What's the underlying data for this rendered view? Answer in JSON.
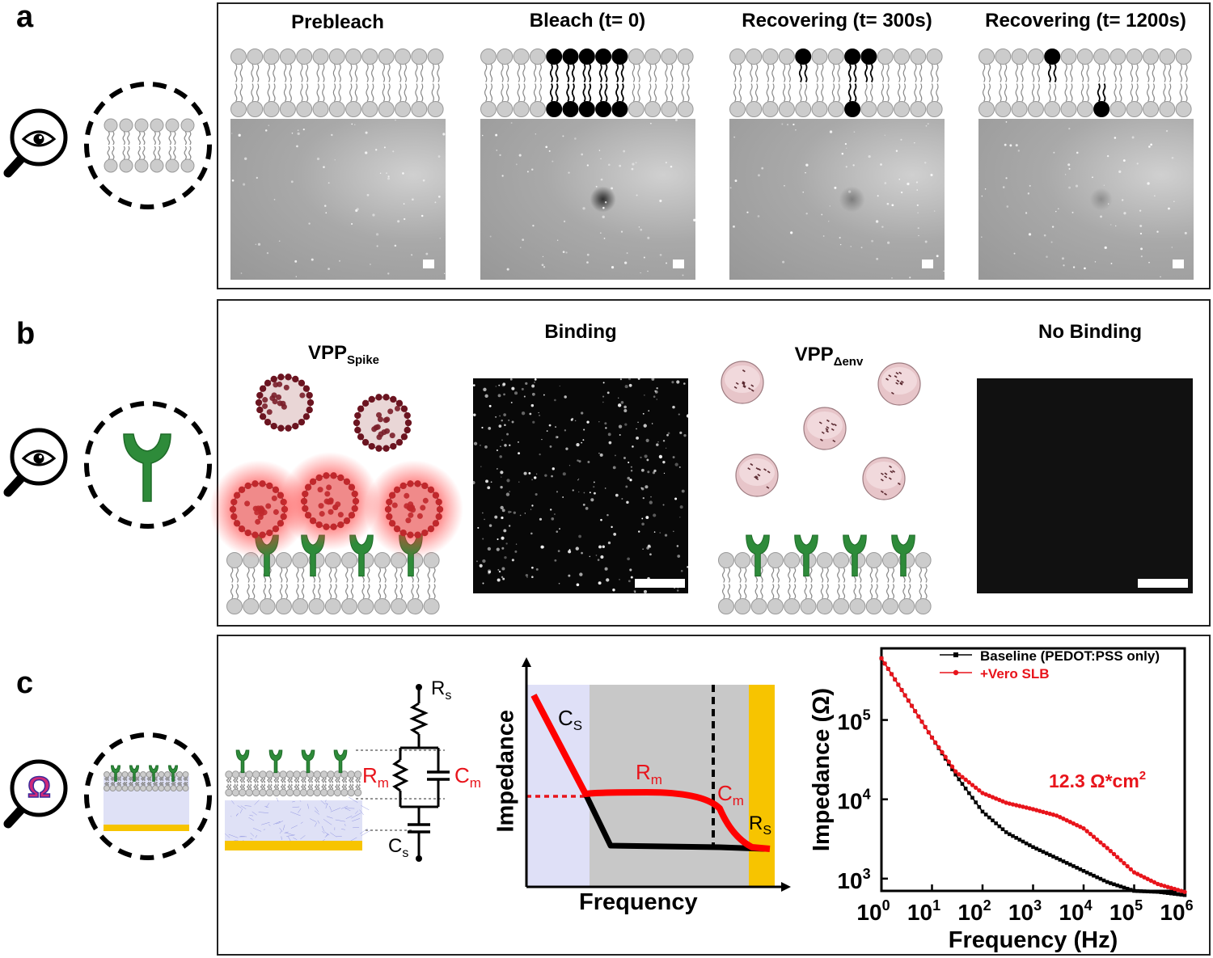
{
  "panels": {
    "a": {
      "letter": "a",
      "titles": [
        "Prebleach",
        "Bleach (t= 0)",
        "Recovering (t= 300s)",
        "Recovering (t= 1200s)"
      ]
    },
    "b": {
      "letter": "b",
      "spike_label": "VPP",
      "spike_sub": "Spike",
      "binding_title": "Binding",
      "env_label": "VPP",
      "env_sub": "Δenv",
      "nobinding_title": "No Binding"
    },
    "c": {
      "letter": "c",
      "omega_symbol": "Ω",
      "circuit": {
        "rs": "R",
        "rs_sub": "s",
        "rm": "R",
        "rm_sub": "m",
        "cm": "C",
        "cm_sub": "m",
        "cs": "C",
        "cs_sub": "s"
      },
      "schematic": {
        "ylabel": "Impedance",
        "xlabel": "Frequency",
        "cs": "C",
        "cs_sub": "S",
        "rm": "R",
        "rm_sub": "m",
        "cm": "C",
        "cm_sub": "m",
        "rs": "R",
        "rs_sub": "S"
      }
    }
  },
  "chart_data": {
    "type": "line",
    "title": "",
    "xlabel": "Frequency (Hz)",
    "ylabel": "Impedance (Ω)",
    "xscale": "log",
    "yscale": "log",
    "xlim": [
      1,
      1000000
    ],
    "ylim": [
      700,
      800000
    ],
    "x_ticks": [
      {
        "value": 1,
        "base": "10",
        "exp": "0"
      },
      {
        "value": 10,
        "base": "10",
        "exp": "1"
      },
      {
        "value": 100,
        "base": "10",
        "exp": "2"
      },
      {
        "value": 1000,
        "base": "10",
        "exp": "3"
      },
      {
        "value": 10000,
        "base": "10",
        "exp": "4"
      },
      {
        "value": 100000,
        "base": "10",
        "exp": "5"
      },
      {
        "value": 1000000,
        "base": "10",
        "exp": "6"
      }
    ],
    "y_ticks": [
      {
        "value": 1000,
        "base": "10",
        "exp": "3"
      },
      {
        "value": 10000,
        "base": "10",
        "exp": "4"
      },
      {
        "value": 100000,
        "base": "10",
        "exp": "5"
      }
    ],
    "series": [
      {
        "name": "Baseline (PEDOT:PSS only)",
        "color": "#000000",
        "x": [
          1,
          3,
          10,
          30,
          100,
          300,
          1000,
          3000,
          10000,
          30000,
          100000,
          300000,
          1000000
        ],
        "y": [
          600000,
          200000,
          60000,
          20000,
          7000,
          3800,
          2500,
          1800,
          1250,
          900,
          700,
          680,
          620
        ]
      },
      {
        "name": "+Vero SLB",
        "color": "#e8141b",
        "x": [
          1,
          3,
          10,
          30,
          100,
          300,
          1000,
          3000,
          10000,
          30000,
          100000,
          300000,
          1000000
        ],
        "y": [
          600000,
          200000,
          60000,
          22000,
          12000,
          9000,
          7500,
          6200,
          4300,
          2400,
          1200,
          850,
          680
        ]
      }
    ],
    "annotation": {
      "text": "12.3 Ω*cm",
      "sup": "2",
      "color": "#e8141b"
    }
  },
  "colors": {
    "lipid_gray": "#cccccc",
    "protein_green": "#2e8b3a",
    "gold": "#f7c400",
    "red": "#e8141b"
  }
}
